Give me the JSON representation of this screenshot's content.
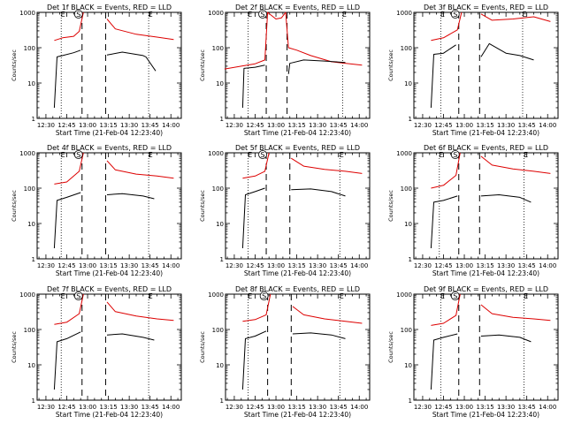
{
  "figure": {
    "common": {
      "xlabel": "Start Time (21-Feb-04 12:23:40)",
      "ylabel": "Counts/sec",
      "x_ticks": [
        "12:30",
        "12:45",
        "13:00",
        "13:15",
        "13:30",
        "13:45",
        "14:00"
      ],
      "y_ticks": [
        "1",
        "10",
        "100",
        "1000"
      ],
      "marker_labels": [
        "E",
        "S",
        "E"
      ],
      "colors": {
        "events": "#000000",
        "lld": "#dd0000",
        "axes": "#000000"
      }
    }
  },
  "chart_data": [
    {
      "type": "line",
      "title": "Det 1f BLACK = Events, RED = LLD",
      "xlabel": "Start Time (21-Feb-04 12:23:40)",
      "ylabel": "Counts/sec",
      "x_ticks": [
        "12:30",
        "12:45",
        "13:00",
        "13:15",
        "13:30",
        "13:45",
        "14:00"
      ],
      "ylim": [
        1,
        1000
      ],
      "y_scale": "log",
      "markers": {
        "dotted": [
          "12:41",
          "13:44"
        ],
        "dashed": [
          "12:56",
          "13:13"
        ],
        "labels": [
          "E",
          "S",
          "E"
        ]
      },
      "series": [
        {
          "color": "black",
          "x": [
            "12:36",
            "12:38",
            "12:42",
            "12:50",
            "12:55",
            "13:12",
            "13:14",
            "13:25",
            "13:40",
            "13:42",
            "13:49"
          ],
          "y": [
            2,
            55,
            60,
            72,
            85,
            null,
            62,
            75,
            60,
            55,
            22
          ]
        },
        {
          "color": "red",
          "x": [
            "12:36",
            "12:42",
            "12:50",
            "12:54",
            "12:57",
            "13:12",
            "13:14",
            "13:20",
            "13:35",
            "13:50",
            "14:02"
          ],
          "y": [
            160,
            190,
            210,
            290,
            1000,
            null,
            650,
            340,
            240,
            200,
            170
          ]
        }
      ]
    },
    {
      "type": "line",
      "title": "Det 2f BLACK = Events, RED = LLD",
      "xlabel": "Start Time (21-Feb-04 12:23:40)",
      "ylabel": "Counts/sec",
      "x_ticks": [
        "12:30",
        "12:45",
        "13:00",
        "13:15",
        "13:30",
        "13:45",
        "14:00"
      ],
      "ylim": [
        1,
        1000
      ],
      "y_scale": "log",
      "markers": {
        "dotted": [
          "12:40",
          "13:48"
        ],
        "dashed": [
          "12:53",
          "13:08"
        ],
        "labels": [
          "E",
          "S",
          "E"
        ]
      },
      "series": [
        {
          "color": "black",
          "x": [
            "12:36",
            "12:37",
            "12:45",
            "12:52",
            "13:07",
            "13:09",
            "13:10",
            "13:20",
            "13:35",
            "13:50"
          ],
          "y": [
            2,
            26,
            28,
            32,
            null,
            18,
            36,
            45,
            42,
            38
          ]
        },
        {
          "color": "red",
          "x": [
            "12:23",
            "12:35",
            "12:45",
            "12:52",
            "12:54",
            "13:00",
            "13:04",
            "13:07",
            "13:09",
            "13:15",
            "13:25",
            "13:40",
            "14:02"
          ],
          "y": [
            25,
            30,
            35,
            45,
            1000,
            650,
            700,
            1000,
            100,
            85,
            60,
            40,
            32
          ]
        }
      ]
    },
    {
      "type": "line",
      "title": "Det 3f BLACK = Events, RED = LLD",
      "xlabel": "Start Time (21-Feb-04 12:23:40)",
      "ylabel": "Counts/sec",
      "x_ticks": [
        "12:30",
        "12:45",
        "13:00",
        "13:15",
        "13:30",
        "13:45",
        "14:00"
      ],
      "ylim": [
        1,
        1000
      ],
      "y_scale": "log",
      "markers": {
        "dotted": [
          "12:43",
          "13:42"
        ],
        "dashed": [
          "12:56",
          "13:11"
        ],
        "labels": [
          "E",
          "S",
          "E"
        ]
      },
      "series": [
        {
          "color": "black",
          "x": [
            "12:36",
            "12:38",
            "12:45",
            "12:54",
            "13:10",
            "13:12",
            "13:18",
            "13:30",
            "13:40",
            "13:50"
          ],
          "y": [
            2,
            65,
            70,
            120,
            null,
            55,
            130,
            70,
            60,
            45
          ]
        },
        {
          "color": "red",
          "x": [
            "12:36",
            "12:45",
            "12:55",
            "12:58",
            "13:10",
            "13:12",
            "13:20",
            "13:35",
            "13:50",
            "14:02"
          ],
          "y": [
            160,
            190,
            320,
            1000,
            null,
            900,
            600,
            650,
            750,
            550
          ]
        }
      ]
    },
    {
      "type": "line",
      "title": "Det 4f BLACK = Events, RED = LLD",
      "xlabel": "Start Time (21-Feb-04 12:23:40)",
      "ylabel": "Counts/sec",
      "x_ticks": [
        "12:30",
        "12:45",
        "13:00",
        "13:15",
        "13:30",
        "13:45",
        "14:00"
      ],
      "ylim": [
        1,
        1000
      ],
      "y_scale": "log",
      "markers": {
        "dotted": [
          "12:41",
          "13:44"
        ],
        "dashed": [
          "12:56",
          "13:13"
        ],
        "labels": [
          "E",
          "S",
          "E"
        ]
      },
      "series": [
        {
          "color": "black",
          "x": [
            "12:36",
            "12:38",
            "12:45",
            "12:55",
            "13:12",
            "13:14",
            "13:25",
            "13:40",
            "13:48"
          ],
          "y": [
            2,
            45,
            55,
            75,
            null,
            65,
            70,
            60,
            50
          ]
        },
        {
          "color": "red",
          "x": [
            "12:36",
            "12:45",
            "12:54",
            "12:57",
            "13:12",
            "13:14",
            "13:20",
            "13:35",
            "13:50",
            "14:02"
          ],
          "y": [
            130,
            150,
            300,
            1000,
            null,
            600,
            330,
            250,
            220,
            190
          ]
        }
      ]
    },
    {
      "type": "line",
      "title": "Det 5f BLACK = Events, RED = LLD",
      "xlabel": "Start Time (21-Feb-04 12:23:40)",
      "ylabel": "Counts/sec",
      "x_ticks": [
        "12:30",
        "12:45",
        "13:00",
        "13:15",
        "13:30",
        "13:45",
        "14:00"
      ],
      "ylim": [
        1,
        1000
      ],
      "y_scale": "log",
      "markers": {
        "dotted": [
          "12:40",
          "13:46"
        ],
        "dashed": [
          "12:53",
          "13:10"
        ],
        "labels": [
          "E",
          "S",
          "E"
        ]
      },
      "series": [
        {
          "color": "black",
          "x": [
            "12:36",
            "12:38",
            "12:45",
            "12:52",
            "13:09",
            "13:11",
            "13:25",
            "13:40",
            "13:50"
          ],
          "y": [
            2,
            65,
            80,
            100,
            null,
            90,
            95,
            80,
            60
          ]
        },
        {
          "color": "red",
          "x": [
            "12:36",
            "12:45",
            "12:52",
            "12:55",
            "13:09",
            "13:11",
            "13:20",
            "13:35",
            "13:50",
            "14:02"
          ],
          "y": [
            190,
            220,
            300,
            1000,
            null,
            700,
            420,
            340,
            300,
            260
          ]
        }
      ]
    },
    {
      "type": "line",
      "title": "Det 6f BLACK = Events, RED = LLD",
      "xlabel": "Start Time (21-Feb-04 12:23:40)",
      "ylabel": "Counts/sec",
      "x_ticks": [
        "12:30",
        "12:45",
        "13:00",
        "13:15",
        "13:30",
        "13:45",
        "14:00"
      ],
      "ylim": [
        1,
        1000
      ],
      "y_scale": "log",
      "markers": {
        "dotted": [
          "12:42",
          "13:43"
        ],
        "dashed": [
          "12:56",
          "13:11"
        ],
        "labels": [
          "E",
          "S",
          "E"
        ]
      },
      "series": [
        {
          "color": "black",
          "x": [
            "12:36",
            "12:38",
            "12:45",
            "12:55",
            "13:10",
            "13:12",
            "13:25",
            "13:40",
            "13:48"
          ],
          "y": [
            2,
            40,
            45,
            60,
            null,
            60,
            65,
            55,
            40
          ]
        },
        {
          "color": "red",
          "x": [
            "12:36",
            "12:45",
            "12:54",
            "12:57",
            "13:10",
            "13:12",
            "13:20",
            "13:35",
            "13:50",
            "14:02"
          ],
          "y": [
            100,
            120,
            230,
            1000,
            null,
            800,
            450,
            350,
            300,
            260
          ]
        }
      ]
    },
    {
      "type": "line",
      "title": "Det 7f BLACK = Events, RED = LLD",
      "xlabel": "Start Time (21-Feb-04 12:23:40)",
      "ylabel": "Counts/sec",
      "x_ticks": [
        "12:30",
        "12:45",
        "13:00",
        "13:15",
        "13:30",
        "13:45",
        "14:00"
      ],
      "ylim": [
        1,
        1000
      ],
      "y_scale": "log",
      "markers": {
        "dotted": [
          "12:41",
          "13:44"
        ],
        "dashed": [
          "12:56",
          "13:13"
        ],
        "labels": [
          "E",
          "S",
          "E"
        ]
      },
      "series": [
        {
          "color": "black",
          "x": [
            "12:36",
            "12:38",
            "12:45",
            "12:55",
            "13:12",
            "13:14",
            "13:25",
            "13:40",
            "13:48"
          ],
          "y": [
            2,
            45,
            55,
            85,
            null,
            70,
            75,
            60,
            50
          ]
        },
        {
          "color": "red",
          "x": [
            "12:36",
            "12:45",
            "12:54",
            "12:57",
            "13:12",
            "13:14",
            "13:20",
            "13:35",
            "13:50",
            "14:02"
          ],
          "y": [
            140,
            160,
            280,
            1000,
            null,
            600,
            320,
            240,
            200,
            180
          ]
        }
      ]
    },
    {
      "type": "line",
      "title": "Det 8f BLACK = Events, RED = LLD",
      "xlabel": "Start Time (21-Feb-04 12:23:40)",
      "ylabel": "Counts/sec",
      "x_ticks": [
        "12:30",
        "12:45",
        "13:00",
        "13:15",
        "13:30",
        "13:45",
        "14:00"
      ],
      "ylim": [
        1,
        1000
      ],
      "y_scale": "log",
      "markers": {
        "dotted": [
          "12:40",
          "13:46"
        ],
        "dashed": [
          "12:54",
          "13:11"
        ],
        "labels": [
          "E",
          "S",
          "E"
        ]
      },
      "series": [
        {
          "color": "black",
          "x": [
            "12:36",
            "12:38",
            "12:45",
            "12:53",
            "13:10",
            "13:12",
            "13:25",
            "13:40",
            "13:50"
          ],
          "y": [
            2,
            55,
            65,
            90,
            null,
            75,
            80,
            70,
            55
          ]
        },
        {
          "color": "red",
          "x": [
            "12:36",
            "12:45",
            "12:53",
            "12:56",
            "13:10",
            "13:12",
            "13:20",
            "13:35",
            "13:50",
            "14:02"
          ],
          "y": [
            170,
            190,
            260,
            1000,
            null,
            450,
            260,
            200,
            170,
            150
          ]
        }
      ]
    },
    {
      "type": "line",
      "title": "Det 9f BLACK = Events, RED = LLD",
      "xlabel": "Start Time (21-Feb-04 12:23:40)",
      "ylabel": "Counts/sec",
      "x_ticks": [
        "12:30",
        "12:45",
        "13:00",
        "13:15",
        "13:30",
        "13:45",
        "14:00"
      ],
      "ylim": [
        1,
        1000
      ],
      "y_scale": "log",
      "markers": {
        "dotted": [
          "12:43",
          "13:43"
        ],
        "dashed": [
          "12:56",
          "13:11"
        ],
        "labels": [
          "E",
          "S",
          "E"
        ]
      },
      "series": [
        {
          "color": "black",
          "x": [
            "12:36",
            "12:38",
            "12:45",
            "12:55",
            "13:10",
            "13:12",
            "13:25",
            "13:40",
            "13:48"
          ],
          "y": [
            2,
            50,
            60,
            75,
            null,
            65,
            70,
            60,
            45
          ]
        },
        {
          "color": "red",
          "x": [
            "12:36",
            "12:45",
            "12:54",
            "12:57",
            "13:10",
            "13:12",
            "13:20",
            "13:35",
            "13:50",
            "14:02"
          ],
          "y": [
            130,
            150,
            250,
            1000,
            null,
            500,
            280,
            220,
            200,
            180
          ]
        }
      ]
    }
  ]
}
